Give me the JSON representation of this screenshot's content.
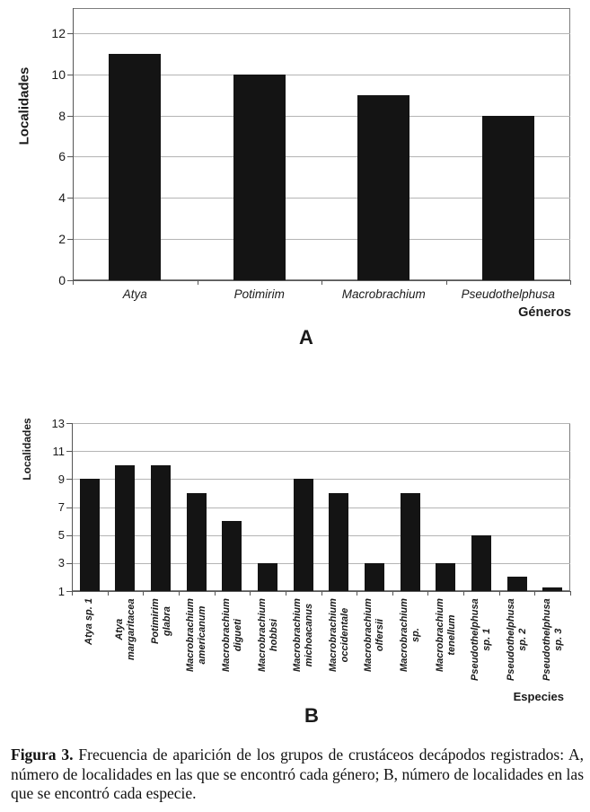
{
  "caption": {
    "label": "Figura 3.",
    "text": "Frecuencia de aparición de los grupos de crustáceos decápodos registrados: A, número de localidades en las que se encontró cada género; B, número de localidades en las que se encontró cada especie."
  },
  "colors": {
    "bar": "#141414",
    "grid": "#b4b4b4",
    "axis": "#555555",
    "border": "#7d7d7d",
    "text": "#1a1a1a",
    "background": "#ffffff"
  },
  "chart_data": [
    {
      "id": "A",
      "type": "bar",
      "panel_label": "A",
      "title": "",
      "xlabel": "Géneros",
      "ylabel": "Localidades",
      "categories": [
        "Atya",
        "Potimirim",
        "Macrobrachium",
        "Pseudothelphusa"
      ],
      "values": [
        11,
        10,
        9,
        8
      ],
      "ylim": [
        0,
        13.2
      ],
      "yticks": [
        0,
        2,
        4,
        6,
        8,
        10,
        12
      ],
      "grid": true,
      "legend": "none",
      "category_style": "italic-horizontal"
    },
    {
      "id": "B",
      "type": "bar",
      "panel_label": "B",
      "title": "",
      "xlabel": "Especies",
      "ylabel": "Localidades",
      "categories": [
        "Atya sp. 1",
        "Atya margaritacea",
        "Potimirim glabra",
        "Macrobrachium americanum",
        "Macrobrachium digueti",
        "Macrobrachium hobbsi",
        "Macrobrachium michoacanus",
        "Macrobrachium occidentale",
        "Macrobrachium olfersii",
        "Macrobrachium sp.",
        "Macrobrachium tenellum",
        "Pseudothelphusa sp. 1",
        "Pseudothelphusa sp. 2",
        "Pseudothelphusa sp. 3"
      ],
      "values": [
        9,
        10,
        10,
        8,
        6,
        3,
        9,
        8,
        3,
        8,
        3,
        5,
        2,
        1
      ],
      "ylim": [
        1,
        13
      ],
      "yticks": [
        1,
        3,
        5,
        7,
        9,
        11,
        13
      ],
      "grid": true,
      "legend": "none",
      "category_style": "bold-italic-rotated"
    }
  ]
}
